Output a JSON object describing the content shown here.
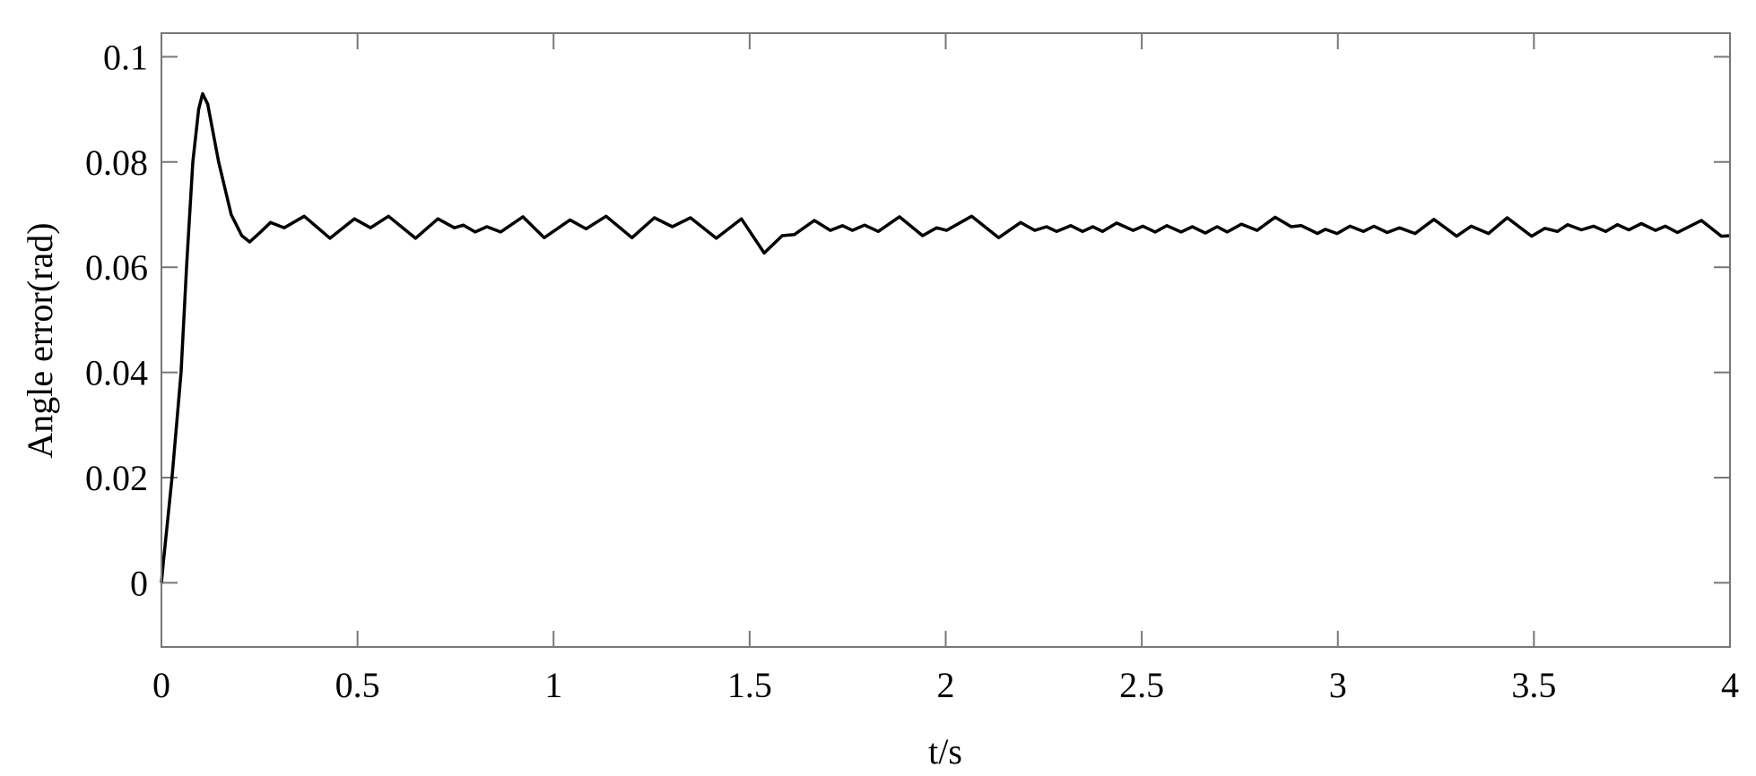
{
  "chart_data": {
    "type": "line",
    "title": "",
    "xlabel": "t/s",
    "ylabel": "Angle error(rad)",
    "xlim": [
      0,
      4
    ],
    "ylim": [
      -0.0122,
      0.1045
    ],
    "xticks": [
      0,
      0.5,
      1,
      1.5,
      2,
      2.5,
      3,
      3.5,
      4
    ],
    "xtick_labels": [
      "0",
      "0.5",
      "1",
      "1.5",
      "2",
      "2.5",
      "3",
      "3.5",
      "4"
    ],
    "yticks": [
      0,
      0.02,
      0.04,
      0.06,
      0.08,
      0.1
    ],
    "ytick_labels": [
      "0",
      "0.02",
      "0.04",
      "0.06",
      "0.08",
      "0.1"
    ],
    "grid": false,
    "line_color": "#000000",
    "axis_color": "#777777",
    "series": [
      {
        "x": [
          0,
          0.005,
          0.027,
          0.05,
          0.064,
          0.08,
          0.095,
          0.105,
          0.118,
          0.146,
          0.178,
          0.205,
          0.225,
          0.25,
          0.278,
          0.313,
          0.364,
          0.43,
          0.492,
          0.533,
          0.579,
          0.648,
          0.705,
          0.747,
          0.77,
          0.8,
          0.83,
          0.865,
          0.922,
          0.976,
          1.042,
          1.083,
          1.134,
          1.2,
          1.257,
          1.303,
          1.349,
          1.415,
          1.479,
          1.537,
          1.583,
          1.614,
          1.665,
          1.706,
          1.737,
          1.762,
          1.793,
          1.828,
          1.882,
          1.941,
          1.977,
          2.002,
          2.066,
          2.135,
          2.191,
          2.227,
          2.257,
          2.283,
          2.319,
          2.349,
          2.375,
          2.4,
          2.436,
          2.478,
          2.503,
          2.534,
          2.564,
          2.6,
          2.629,
          2.662,
          2.692,
          2.718,
          2.754,
          2.794,
          2.84,
          2.881,
          2.907,
          2.948,
          2.968,
          2.998,
          3.031,
          3.065,
          3.092,
          3.126,
          3.157,
          3.197,
          3.245,
          3.303,
          3.34,
          3.384,
          3.432,
          3.494,
          3.528,
          3.56,
          3.586,
          3.621,
          3.652,
          3.683,
          3.713,
          3.742,
          3.774,
          3.81,
          3.835,
          3.866,
          3.927,
          3.978,
          4.0
        ],
        "y": [
          0,
          0.004,
          0.02,
          0.04,
          0.06,
          0.08,
          0.09,
          0.093,
          0.091,
          0.08,
          0.07,
          0.066,
          0.0648,
          0.0665,
          0.0685,
          0.0675,
          0.0697,
          0.0655,
          0.0692,
          0.0675,
          0.0697,
          0.0655,
          0.0692,
          0.0675,
          0.068,
          0.0667,
          0.0677,
          0.0667,
          0.0696,
          0.0656,
          0.069,
          0.0673,
          0.0697,
          0.0656,
          0.0694,
          0.0677,
          0.0694,
          0.0655,
          0.0692,
          0.0627,
          0.066,
          0.0662,
          0.0689,
          0.067,
          0.0679,
          0.067,
          0.068,
          0.0668,
          0.0696,
          0.066,
          0.0675,
          0.067,
          0.0697,
          0.0656,
          0.0685,
          0.067,
          0.0677,
          0.0668,
          0.0679,
          0.0668,
          0.0677,
          0.0668,
          0.0684,
          0.067,
          0.0678,
          0.0667,
          0.0679,
          0.0667,
          0.0677,
          0.0665,
          0.0677,
          0.0667,
          0.0682,
          0.067,
          0.0695,
          0.0677,
          0.0679,
          0.0664,
          0.0672,
          0.0664,
          0.0678,
          0.0668,
          0.0678,
          0.0666,
          0.0675,
          0.0664,
          0.0691,
          0.0659,
          0.0678,
          0.0664,
          0.0694,
          0.0659,
          0.0674,
          0.0668,
          0.0681,
          0.0671,
          0.0678,
          0.0668,
          0.0681,
          0.0671,
          0.0683,
          0.067,
          0.0678,
          0.0666,
          0.0689,
          0.0659,
          0.066
        ]
      }
    ]
  }
}
